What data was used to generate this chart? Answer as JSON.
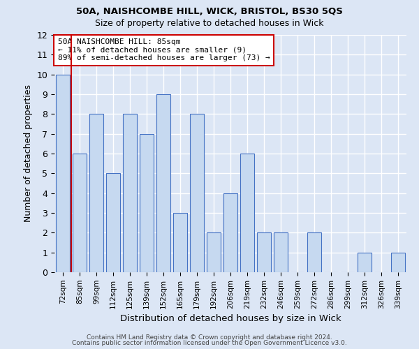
{
  "title1": "50A, NAISHCOMBE HILL, WICK, BRISTOL, BS30 5QS",
  "title2": "Size of property relative to detached houses in Wick",
  "xlabel": "Distribution of detached houses by size in Wick",
  "ylabel": "Number of detached properties",
  "categories": [
    "72sqm",
    "85sqm",
    "99sqm",
    "112sqm",
    "125sqm",
    "139sqm",
    "152sqm",
    "165sqm",
    "179sqm",
    "192sqm",
    "206sqm",
    "219sqm",
    "232sqm",
    "246sqm",
    "259sqm",
    "272sqm",
    "286sqm",
    "299sqm",
    "312sqm",
    "326sqm",
    "339sqm"
  ],
  "values": [
    10,
    6,
    8,
    5,
    8,
    7,
    9,
    3,
    8,
    2,
    4,
    6,
    2,
    2,
    0,
    2,
    0,
    0,
    1,
    0,
    1
  ],
  "bar_color": "#c6d9f0",
  "bar_edge_color": "#4472c4",
  "highlight_index": 1,
  "highlight_line_color": "#cc0000",
  "annotation_text": "50A NAISHCOMBE HILL: 85sqm\n← 11% of detached houses are smaller (9)\n89% of semi-detached houses are larger (73) →",
  "annotation_box_color": "#ffffff",
  "annotation_box_edge": "#cc0000",
  "footer1": "Contains HM Land Registry data © Crown copyright and database right 2024.",
  "footer2": "Contains public sector information licensed under the Open Government Licence v3.0.",
  "ylim": [
    0,
    12
  ],
  "yticks": [
    0,
    1,
    2,
    3,
    4,
    5,
    6,
    7,
    8,
    9,
    10,
    11,
    12
  ],
  "background_color": "#dce6f5",
  "grid_color": "#ffffff"
}
